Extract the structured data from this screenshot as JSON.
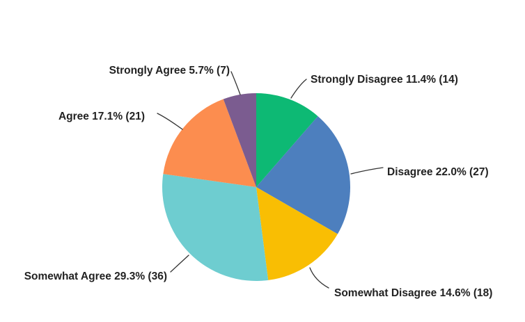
{
  "page": {
    "background_color": "#ffffff"
  },
  "chart_data": {
    "type": "pie",
    "title": "",
    "legend_position": "none",
    "labels_style": "outside-with-leader-lines",
    "start_angle_deg": 0,
    "direction": "clockwise",
    "label_text_color": "#222222",
    "leader_line_color": "#333333",
    "slices": [
      {
        "label": "Strongly Disagree",
        "percent": 11.4,
        "count": 14,
        "color": "#0DB974",
        "display": "Strongly Disagree 11.4% (14)"
      },
      {
        "label": "Disagree",
        "percent": 22.0,
        "count": 27,
        "color": "#4D7FBE",
        "display": "Disagree 22.0% (27)"
      },
      {
        "label": "Somewhat Disagree",
        "percent": 14.6,
        "count": 18,
        "color": "#F9BE03",
        "display": "Somewhat Disagree 14.6% (18)"
      },
      {
        "label": "Somewhat Agree",
        "percent": 29.3,
        "count": 36,
        "color": "#6ECDD0",
        "display": "Somewhat Agree 29.3% (36)"
      },
      {
        "label": "Agree",
        "percent": 17.1,
        "count": 21,
        "color": "#FC8D4F",
        "display": "Agree 17.1% (21)"
      },
      {
        "label": "Strongly Agree",
        "percent": 5.7,
        "count": 7,
        "color": "#7B5C90",
        "display": "Strongly Agree 5.7% (7)"
      }
    ]
  }
}
